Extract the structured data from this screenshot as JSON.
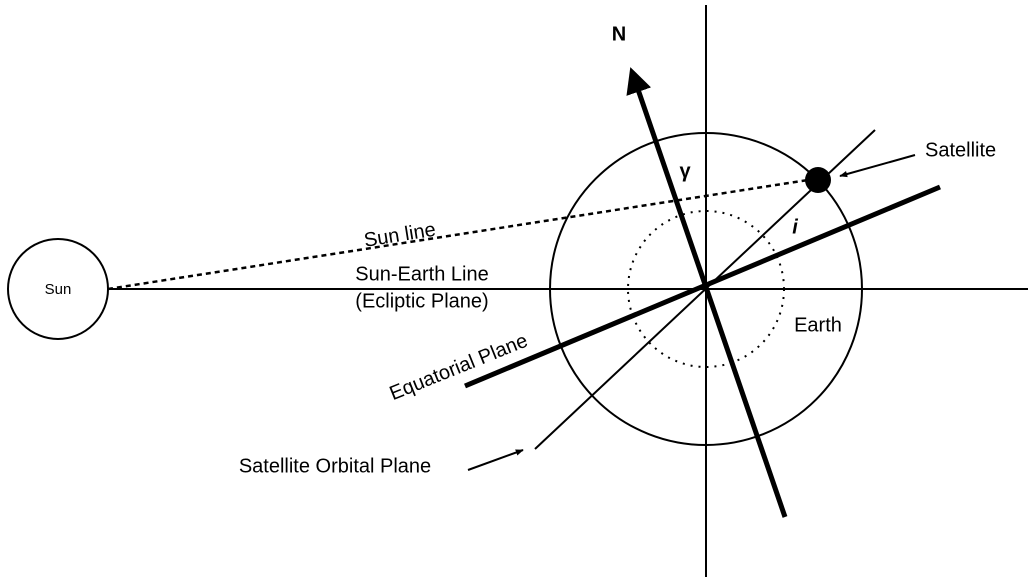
{
  "labels": {
    "north": "N",
    "gamma": "γ",
    "satellite": "Satellite",
    "sun_line": "Sun line",
    "inclination": "i",
    "sun": "Sun",
    "sun_earth_line": "Sun-Earth Line",
    "ecliptic_plane": "(Ecliptic Plane)",
    "earth": "Earth",
    "equatorial_plane": "Equatorial Plane",
    "orbital_plane": "Satellite Orbital Plane"
  }
}
